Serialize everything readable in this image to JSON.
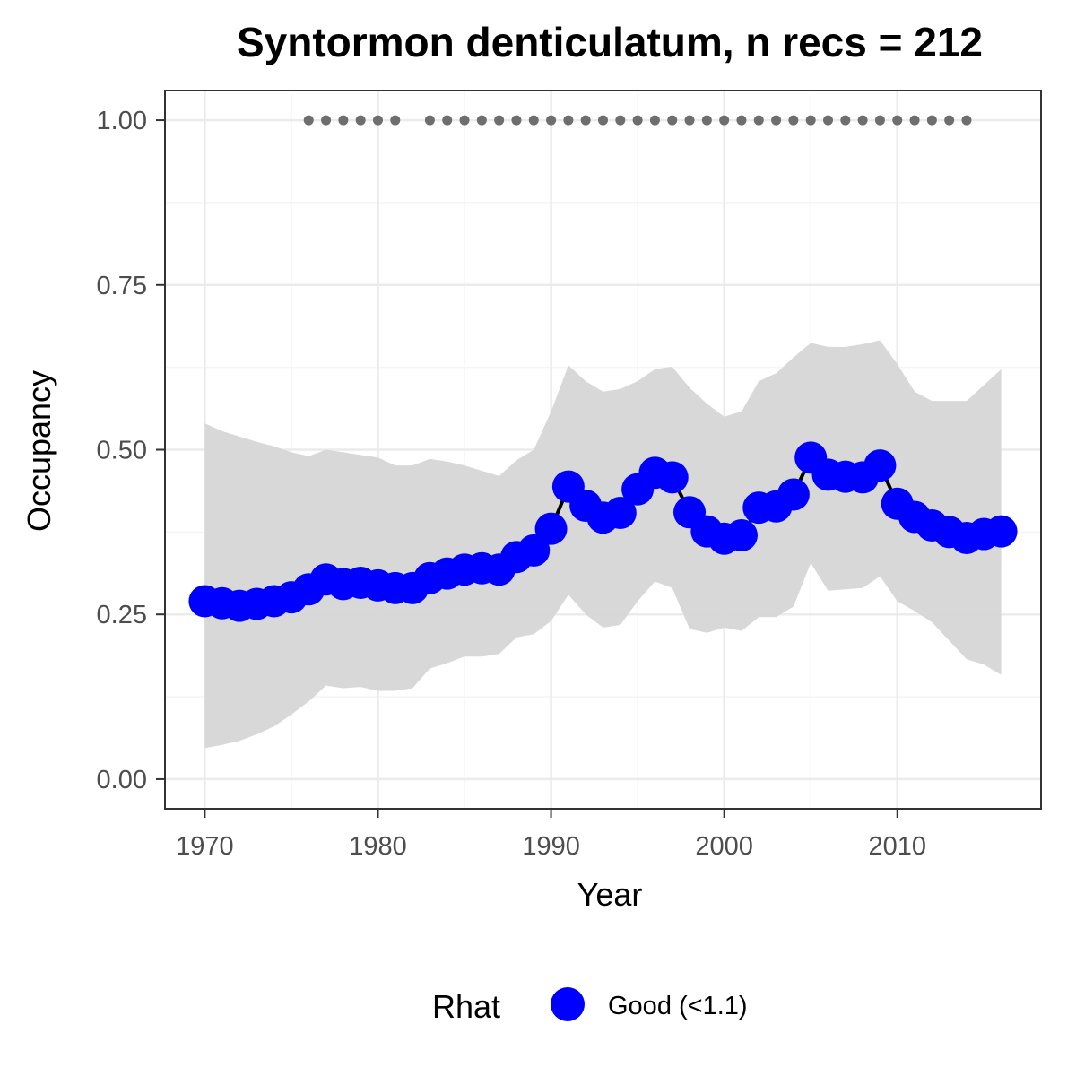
{
  "chart_data": {
    "type": "line",
    "title": "Syntormon denticulatum, n recs = 212",
    "xlabel": "Year",
    "ylabel": "Occupancy",
    "xlim": [
      1967.7,
      2018.3
    ],
    "ylim": [
      -0.045,
      1.045
    ],
    "x_ticks": [
      1970,
      1980,
      1990,
      2000,
      2010
    ],
    "x_tick_labels": [
      "1970",
      "1980",
      "1990",
      "2000",
      "2010"
    ],
    "y_ticks": [
      0,
      0.25,
      0.5,
      0.75,
      1
    ],
    "y_tick_labels": [
      "0.00",
      "0.25",
      "0.50",
      "0.75",
      "1.00"
    ],
    "grid": true,
    "legend": {
      "title": "Rhat",
      "position": "bottom",
      "entries": [
        {
          "label": "Good (<1.1)",
          "color": "#0000ff"
        }
      ]
    },
    "colors": {
      "points": "#0000ff",
      "line": "#000000",
      "ribbon": "#d6d6d6",
      "record_dots": "#6e6e6e",
      "grid_major": "#ebebeb",
      "grid_minor": "#f5f5f5",
      "panel_border": "#333333"
    },
    "series": [
      {
        "x": [
          1970,
          1971,
          1972,
          1973,
          1974,
          1975,
          1976,
          1977,
          1978,
          1979,
          1980,
          1981,
          1982,
          1983,
          1984,
          1985,
          1986,
          1987,
          1988,
          1989,
          1990,
          1991,
          1992,
          1993,
          1994,
          1995,
          1996,
          1997,
          1998,
          1999,
          2000,
          2001,
          2002,
          2003,
          2004,
          2005,
          2006,
          2007,
          2008,
          2009,
          2010,
          2011,
          2012,
          2013,
          2014,
          2015,
          2016
        ],
        "values": [
          0.27,
          0.267,
          0.263,
          0.266,
          0.27,
          0.276,
          0.288,
          0.303,
          0.296,
          0.298,
          0.294,
          0.29,
          0.29,
          0.305,
          0.312,
          0.318,
          0.32,
          0.318,
          0.337,
          0.347,
          0.38,
          0.444,
          0.415,
          0.397,
          0.404,
          0.44,
          0.465,
          0.458,
          0.405,
          0.376,
          0.365,
          0.37,
          0.412,
          0.414,
          0.432,
          0.488,
          0.462,
          0.459,
          0.458,
          0.476,
          0.418,
          0.398,
          0.385,
          0.375,
          0.366,
          0.372,
          0.376
        ],
        "lower": [
          0.047,
          0.052,
          0.058,
          0.068,
          0.08,
          0.098,
          0.118,
          0.142,
          0.138,
          0.14,
          0.134,
          0.134,
          0.138,
          0.168,
          0.176,
          0.186,
          0.186,
          0.19,
          0.215,
          0.22,
          0.24,
          0.28,
          0.25,
          0.23,
          0.234,
          0.27,
          0.3,
          0.29,
          0.228,
          0.222,
          0.23,
          0.225,
          0.246,
          0.246,
          0.262,
          0.328,
          0.286,
          0.288,
          0.29,
          0.308,
          0.27,
          0.255,
          0.238,
          0.21,
          0.182,
          0.174,
          0.158
        ],
        "upper": [
          0.54,
          0.528,
          0.52,
          0.512,
          0.505,
          0.496,
          0.49,
          0.5,
          0.496,
          0.492,
          0.488,
          0.476,
          0.476,
          0.486,
          0.482,
          0.476,
          0.468,
          0.46,
          0.484,
          0.5,
          0.558,
          0.628,
          0.604,
          0.588,
          0.592,
          0.604,
          0.622,
          0.626,
          0.594,
          0.57,
          0.55,
          0.558,
          0.604,
          0.616,
          0.64,
          0.662,
          0.656,
          0.656,
          0.66,
          0.666,
          0.63,
          0.588,
          0.574,
          0.574,
          0.574,
          0.598,
          0.622
        ]
      }
    ],
    "records": {
      "x": [
        1976,
        1977,
        1978,
        1979,
        1980,
        1981,
        1983,
        1984,
        1985,
        1986,
        1987,
        1988,
        1989,
        1990,
        1991,
        1992,
        1993,
        1994,
        1995,
        1996,
        1997,
        1998,
        1999,
        2000,
        2001,
        2002,
        2003,
        2004,
        2005,
        2006,
        2007,
        2008,
        2009,
        2010,
        2011,
        2012,
        2013,
        2014
      ],
      "y": 1.0
    }
  }
}
